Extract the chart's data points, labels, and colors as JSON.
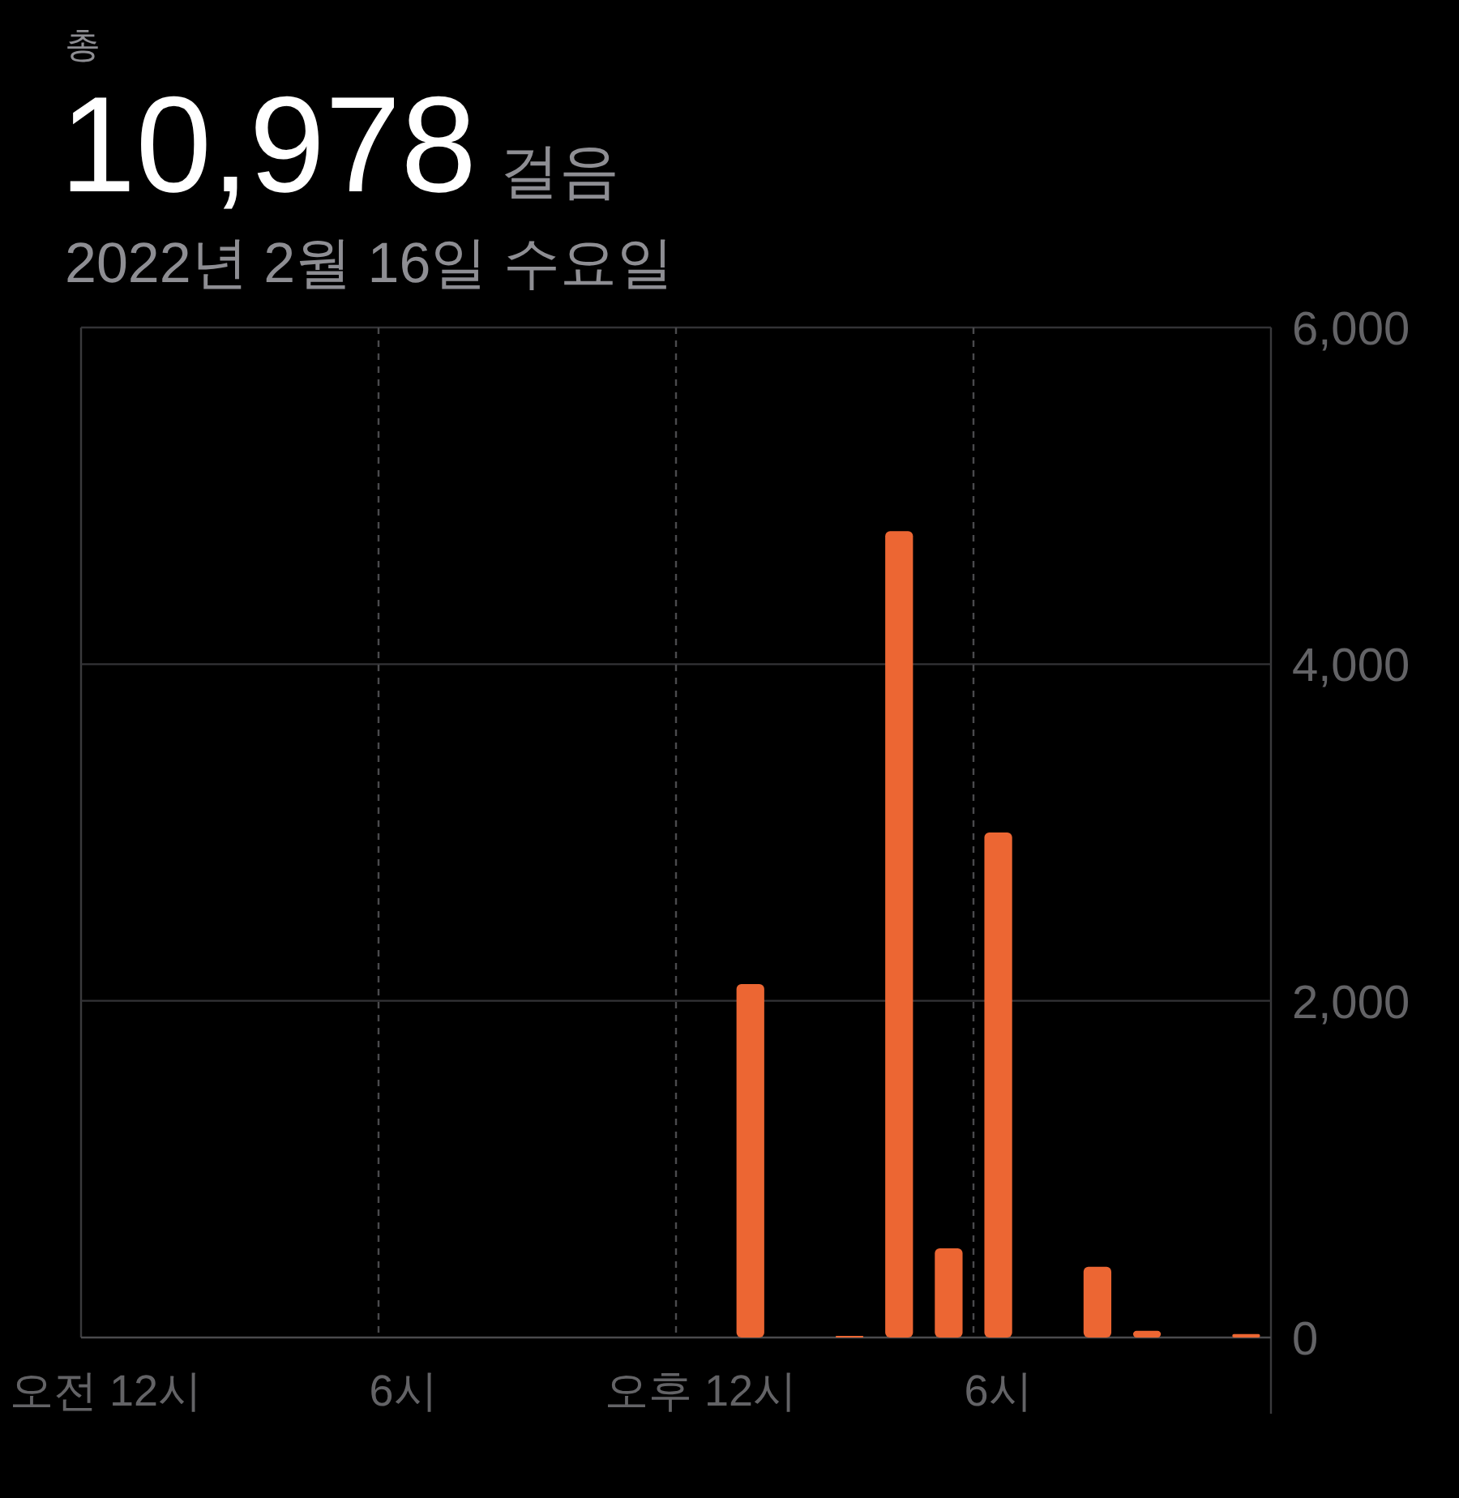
{
  "chart_data": {
    "type": "bar",
    "title": "10,978",
    "subtitle": "2022년 2월 16일 수요일",
    "annotations": [
      "총",
      "걸음"
    ],
    "categories": [
      "오전 12시",
      null,
      null,
      null,
      null,
      null,
      "6시",
      null,
      null,
      null,
      null,
      null,
      "오후 12시",
      null,
      null,
      null,
      null,
      null,
      "6시",
      null,
      null,
      null,
      null,
      null
    ],
    "values": [
      null,
      null,
      null,
      null,
      null,
      null,
      null,
      null,
      null,
      null,
      null,
      null,
      null,
      2100,
      null,
      10,
      4790,
      530,
      3000,
      null,
      420,
      40,
      null,
      20
    ],
    "color": "#ec6633",
    "ylim": [
      0,
      6000
    ],
    "yticks": [
      0,
      {
        "value": 2000,
        "label": "2,000"
      },
      {
        "value": 4000,
        "label": "4,000"
      },
      {
        "value": 6000,
        "label": "6,000"
      }
    ],
    "grid": true
  }
}
